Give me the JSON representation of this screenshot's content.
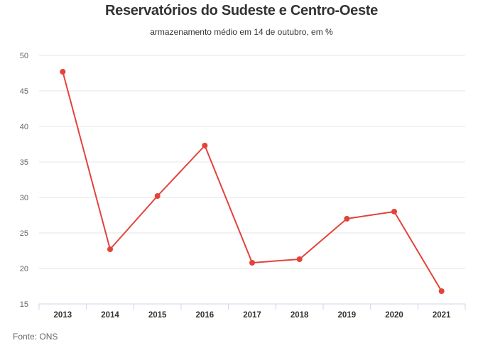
{
  "header": {
    "title": "Reservatórios do Sudeste e Centro-Oeste",
    "subtitle": "armazenamento médio em 14 de outubro, em %"
  },
  "footer": {
    "source": "Fonte: ONS"
  },
  "chart_data": {
    "type": "line",
    "title": "Reservatórios do Sudeste e Centro-Oeste",
    "subtitle": "armazenamento médio em 14 de outubro, em %",
    "categories": [
      "2013",
      "2014",
      "2015",
      "2016",
      "2017",
      "2018",
      "2019",
      "2020",
      "2021"
    ],
    "series": [
      {
        "values": [
          47.7,
          22.7,
          30.2,
          37.3,
          20.8,
          21.3,
          27.0,
          28.0,
          16.8
        ],
        "color": "#e2433b"
      }
    ],
    "yticks": [
      15,
      20,
      25,
      30,
      35,
      40,
      45,
      50
    ],
    "ylim": [
      15,
      50
    ],
    "xlabel": "",
    "ylabel": "",
    "grid": true,
    "legend": "none"
  }
}
